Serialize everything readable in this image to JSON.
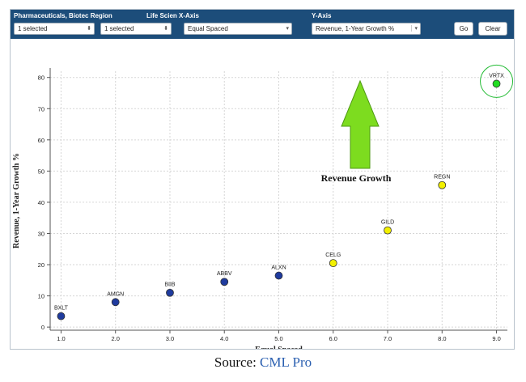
{
  "toolbar": {
    "region_label": "Pharmaceuticals, Biotec Region",
    "life_label": "Life Scien X-Axis",
    "yaxis_label": "Y-Axis",
    "region_value": "1 selected",
    "life_value": "1 selected",
    "xaxis_value": "Equal Spaced",
    "yaxis_value": "Revenue, 1-Year Growth %",
    "go_label": "Go",
    "clear_label": "Clear"
  },
  "annotation": {
    "text": "Revenue Growth",
    "arrow_color": "#7ddc1f"
  },
  "source": {
    "prefix": "Source:",
    "link": "CML Pro"
  },
  "chart_data": {
    "type": "scatter",
    "title": "",
    "xlabel": "Equal Spaced",
    "ylabel": "Revenue, 1-Year Growth %",
    "xlim": [
      0.8,
      9.2
    ],
    "ylim": [
      -1,
      82
    ],
    "x_ticks": [
      1.0,
      2.0,
      3.0,
      4.0,
      5.0,
      6.0,
      7.0,
      8.0,
      9.0
    ],
    "x_tick_labels": [
      "1.0",
      "2.0",
      "3.0",
      "4.0",
      "5.0",
      "6.0",
      "7.0",
      "8.0",
      "9.0"
    ],
    "y_ticks": [
      0,
      10,
      20,
      30,
      40,
      50,
      60,
      70,
      80
    ],
    "y_tick_labels": [
      "0",
      "10",
      "20",
      "30",
      "40",
      "50",
      "60",
      "70",
      "80"
    ],
    "grid": true,
    "points": [
      {
        "label": "BXLT",
        "x": 1,
        "y": 3.5,
        "color": "#1f3b9e"
      },
      {
        "label": "AMGN",
        "x": 2,
        "y": 8,
        "color": "#1f3b9e"
      },
      {
        "label": "BIIB",
        "x": 3,
        "y": 11,
        "color": "#1f3b9e"
      },
      {
        "label": "ABBV",
        "x": 4,
        "y": 14.5,
        "color": "#1f3b9e"
      },
      {
        "label": "ALXN",
        "x": 5,
        "y": 16.5,
        "color": "#1f3b9e"
      },
      {
        "label": "CELG",
        "x": 6,
        "y": 20.5,
        "color": "#f2f000"
      },
      {
        "label": "GILD",
        "x": 7,
        "y": 31,
        "color": "#f2f000"
      },
      {
        "label": "REGN",
        "x": 8,
        "y": 45.5,
        "color": "#f2f000"
      },
      {
        "label": "VRTX",
        "x": 9,
        "y": 78,
        "color": "#22dd22",
        "highlight": true
      }
    ]
  }
}
